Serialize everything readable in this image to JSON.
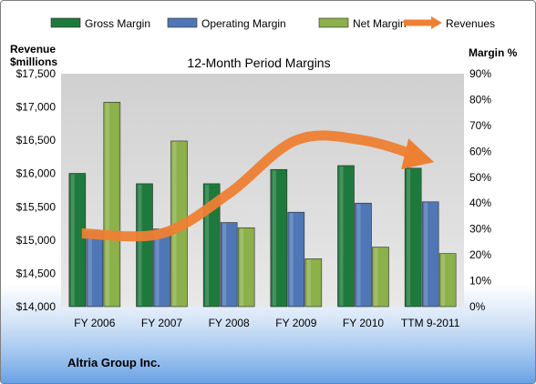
{
  "chart_data": {
    "type": "bar",
    "title": "12-Month Period Margins",
    "categories": [
      "FY 2006",
      "FY 2007",
      "FY 2008",
      "FY 2009",
      "FY 2010",
      "TTM 9-2011"
    ],
    "series": [
      {
        "name": "Gross Margin",
        "axis": "right",
        "color": "#1e7a3c",
        "values": [
          51.5,
          47.5,
          47.5,
          53.0,
          54.5,
          53.5
        ]
      },
      {
        "name": "Operating Margin",
        "axis": "right",
        "color": "#4f77b5",
        "values": [
          29.0,
          30.0,
          32.5,
          36.5,
          40.0,
          40.5
        ]
      },
      {
        "name": "Net Margin",
        "axis": "right",
        "color": "#8cb04a",
        "values": [
          79.0,
          64.0,
          30.5,
          18.5,
          23.0,
          20.5
        ]
      },
      {
        "name": "Revenues",
        "axis": "left",
        "type": "line",
        "color": "#ee8033",
        "values": [
          15100,
          15100,
          15700,
          16500,
          16500,
          16200
        ]
      }
    ],
    "y_left": {
      "label_line1": "Revenue",
      "label_line2": "$millions",
      "min": 14000,
      "max": 17500,
      "step": 500,
      "ticks": [
        "$14,000",
        "$14,500",
        "$15,000",
        "$15,500",
        "$16,000",
        "$16,500",
        "$17,000",
        "$17,500"
      ]
    },
    "y_right": {
      "label": "Margin %",
      "min": 0,
      "max": 90,
      "step": 10,
      "ticks": [
        "0%",
        "10%",
        "20%",
        "30%",
        "40%",
        "50%",
        "60%",
        "70%",
        "80%",
        "90%"
      ]
    },
    "legend_position": "top",
    "grid": false,
    "footer": "Altria Group Inc."
  }
}
